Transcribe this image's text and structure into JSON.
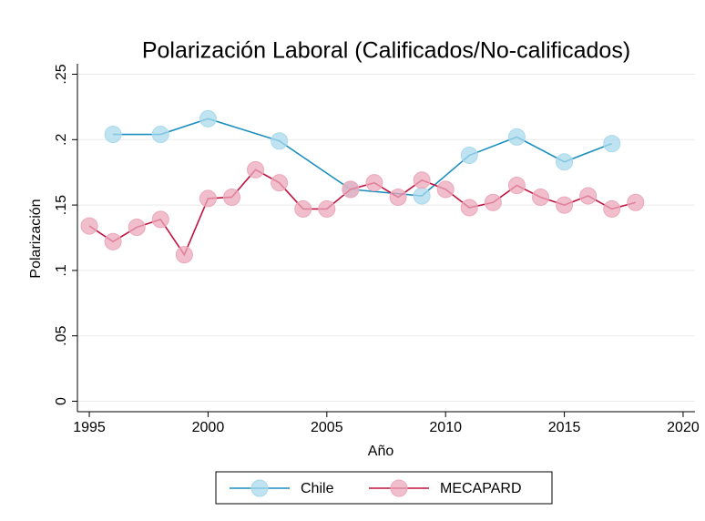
{
  "chart_data": {
    "type": "line",
    "title": "Polarización Laboral (Calificados/No-calificados)",
    "x_label": "Año",
    "y_label": "Polarización",
    "xlim": [
      1994.5,
      2020.5
    ],
    "xticks": [
      1995,
      2000,
      2005,
      2010,
      2015,
      2020
    ],
    "ylim": [
      -0.008,
      0.258
    ],
    "yticks": [
      0,
      {
        "value": 0.05,
        "label": ".05"
      },
      {
        "value": 0.1,
        "label": ".1"
      },
      {
        "value": 0.15,
        "label": ".15"
      },
      {
        "value": 0.2,
        "label": ".2"
      },
      {
        "value": 0.25,
        "label": ".25"
      }
    ],
    "grid": true,
    "series": [
      {
        "name": "Chile",
        "color": "#1b8fbf",
        "marker_color": "#a9d9ec",
        "x": [
          1996,
          1998,
          2000,
          2003,
          2006,
          2009,
          2011,
          2013,
          2015,
          2017
        ],
        "values": [
          0.204,
          0.204,
          0.216,
          0.199,
          0.162,
          0.157,
          0.188,
          0.202,
          0.183,
          0.197
        ]
      },
      {
        "name": "MECAPARD",
        "color": "#c1123f",
        "marker_color": "#eba8bb",
        "x": [
          1995,
          1996,
          1997,
          1998,
          1999,
          2000,
          2001,
          2002,
          2003,
          2004,
          2005,
          2006,
          2007,
          2008,
          2009,
          2010,
          2011,
          2012,
          2013,
          2014,
          2015,
          2016,
          2017,
          2018
        ],
        "values": [
          0.134,
          0.122,
          0.133,
          0.139,
          0.112,
          0.155,
          0.156,
          0.177,
          0.167,
          0.147,
          0.147,
          0.162,
          0.167,
          0.156,
          0.169,
          0.162,
          0.148,
          0.152,
          0.165,
          0.156,
          0.15,
          0.157,
          0.147,
          0.152
        ]
      }
    ]
  }
}
